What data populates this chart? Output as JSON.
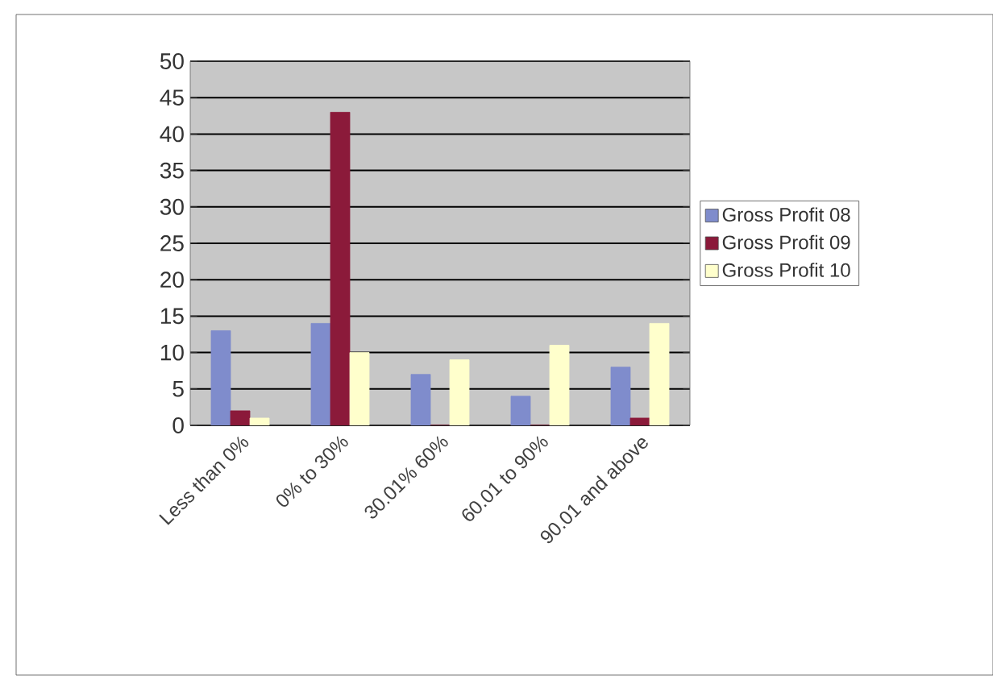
{
  "chart_data": {
    "type": "bar",
    "categories": [
      "Less than 0%",
      "0% to 30%",
      "30.01% 60%",
      "60.01 to 90%",
      "90.01 and above"
    ],
    "series": [
      {
        "name": "Gross Profit 08",
        "color": "#7f8ccc",
        "values": [
          13,
          14,
          7,
          4,
          8
        ]
      },
      {
        "name": "Gross Profit 09",
        "color": "#8b1a3a",
        "values": [
          2,
          43,
          0,
          0,
          1
        ]
      },
      {
        "name": "Gross Profit 10",
        "color": "#ffffcc",
        "values": [
          1,
          10,
          9,
          11,
          14
        ]
      }
    ],
    "ylim": [
      0,
      50
    ],
    "yticks": [
      0,
      5,
      10,
      15,
      20,
      25,
      30,
      35,
      40,
      45,
      50
    ],
    "grid": "y",
    "legend": "right"
  }
}
